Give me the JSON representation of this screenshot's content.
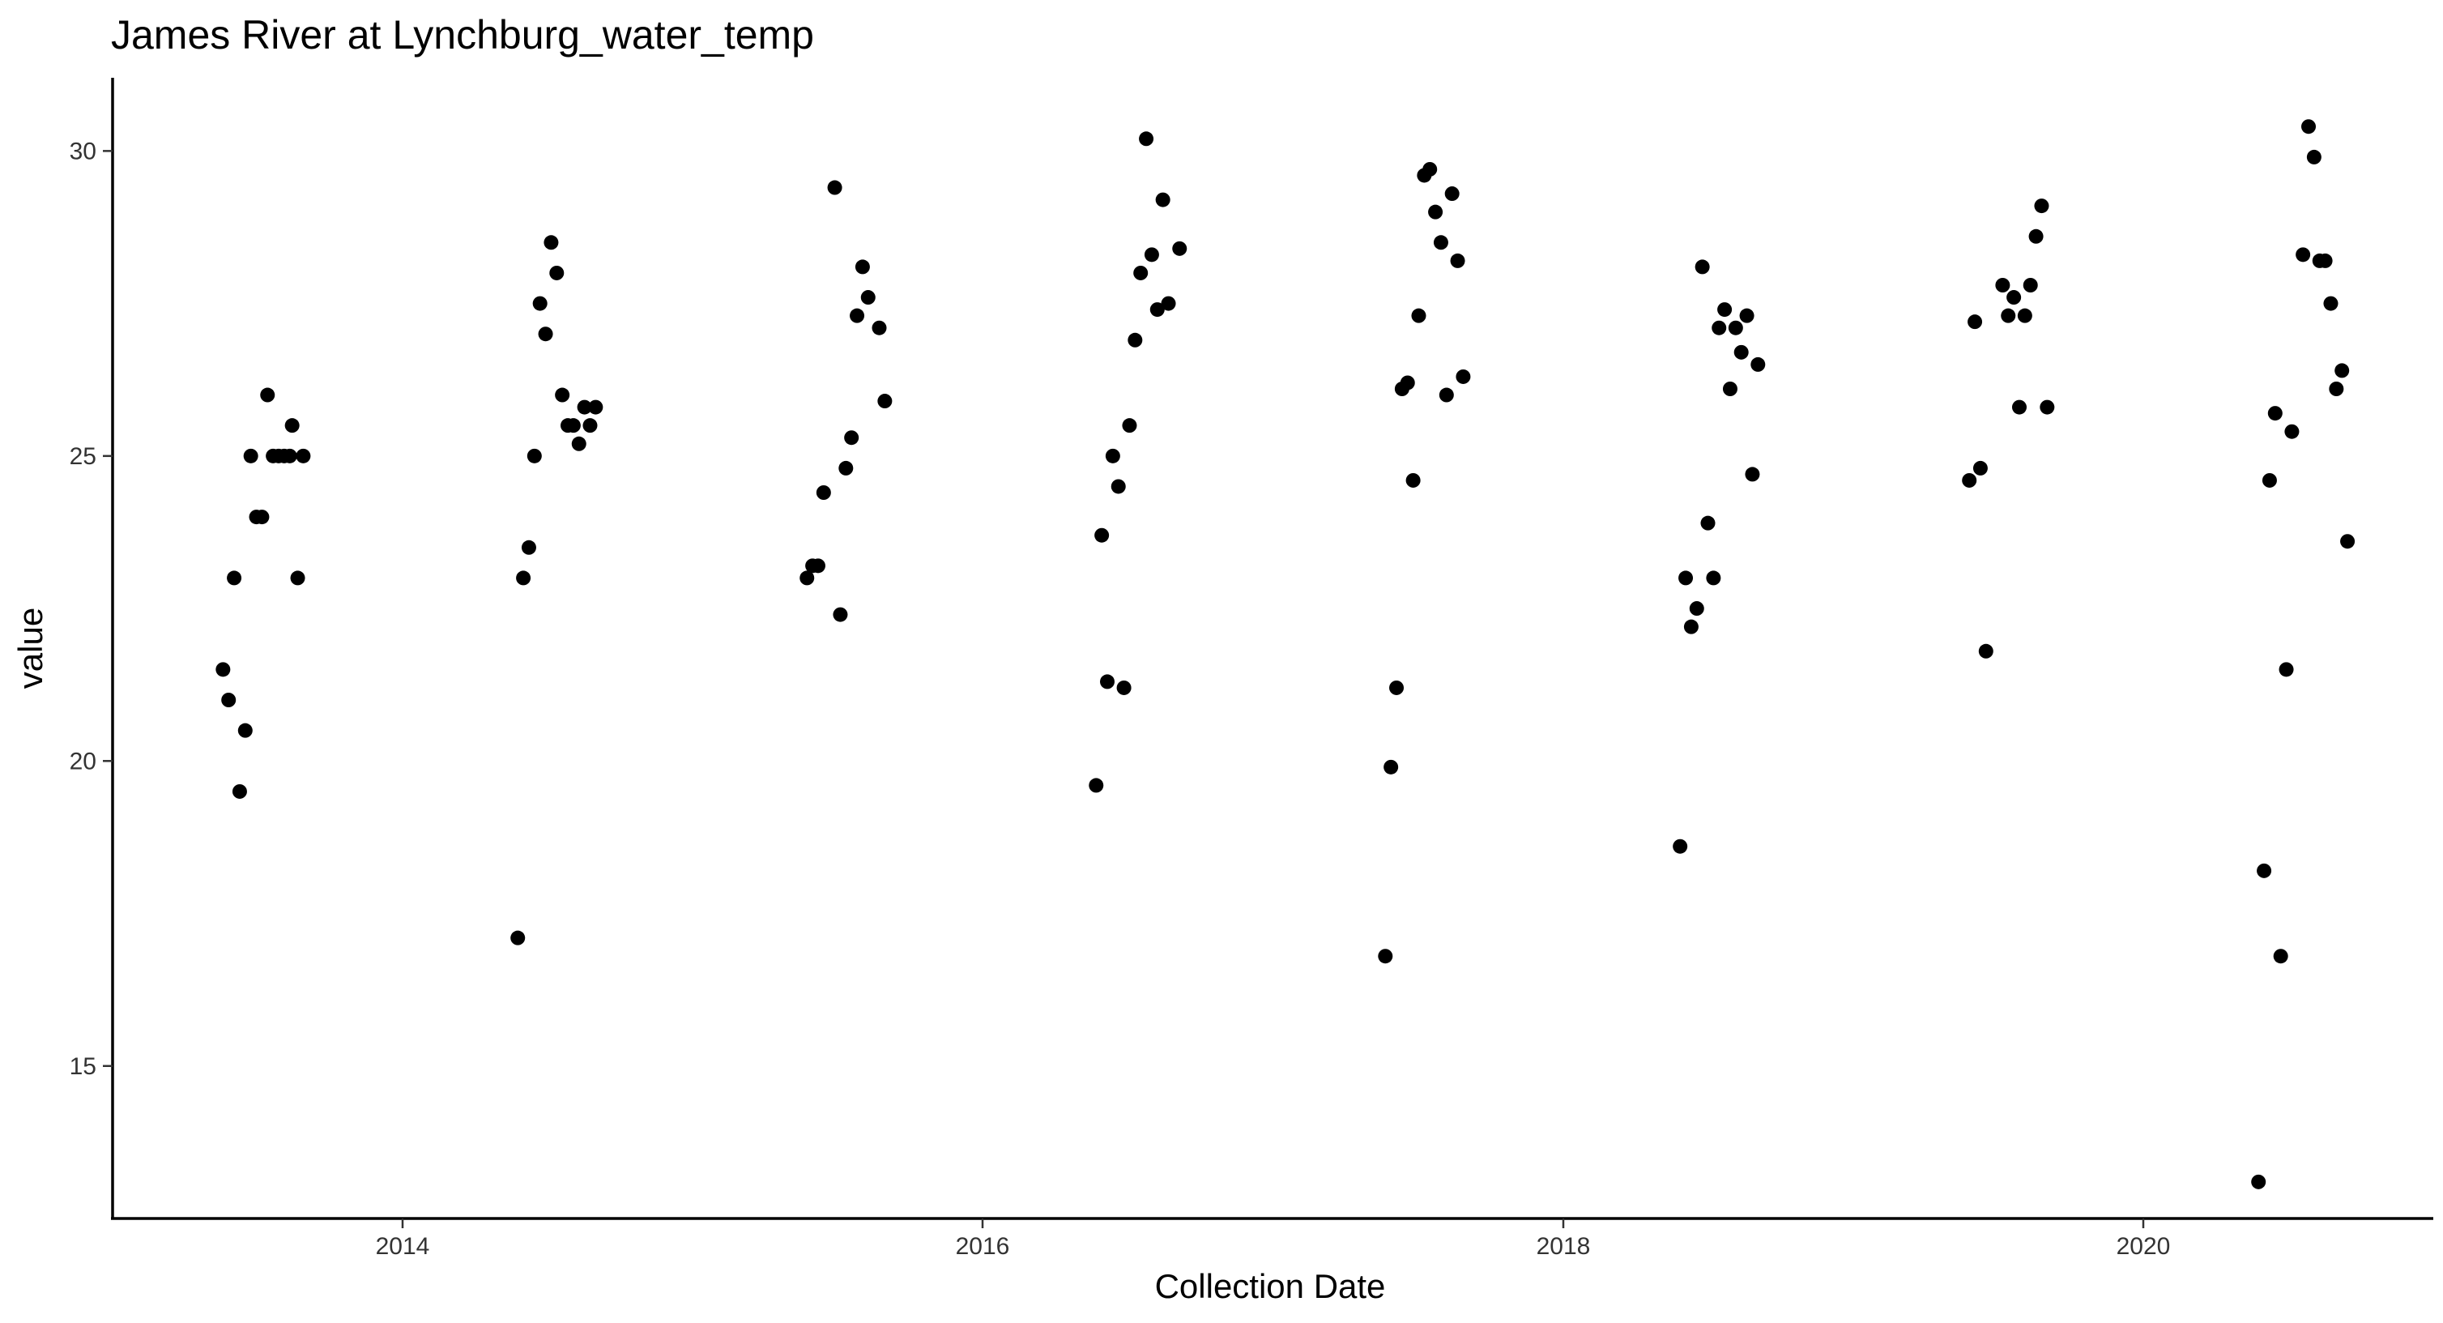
{
  "chart_data": {
    "type": "scatter",
    "title": "James River at Lynchburg_water_temp",
    "xlabel": "Collection Date",
    "ylabel": "value",
    "x_axis_type": "date",
    "xlim": [
      "2013-01-01",
      "2020-12-31"
    ],
    "ylim": [
      12.5,
      31.2
    ],
    "x_ticks": [
      {
        "value": "2014-01-01",
        "label": "2014"
      },
      {
        "value": "2016-01-01",
        "label": "2016"
      },
      {
        "value": "2018-01-01",
        "label": "2018"
      },
      {
        "value": "2020-01-01",
        "label": "2020"
      }
    ],
    "y_ticks": [
      15,
      20,
      25,
      30
    ],
    "grid": false,
    "point_color": "#000000",
    "points": [
      {
        "x": "2013-05-20",
        "y": 21.5
      },
      {
        "x": "2013-05-27",
        "y": 21.0
      },
      {
        "x": "2013-06-03",
        "y": 23.0
      },
      {
        "x": "2013-06-10",
        "y": 19.5
      },
      {
        "x": "2013-06-17",
        "y": 20.5
      },
      {
        "x": "2013-06-24",
        "y": 25.0
      },
      {
        "x": "2013-07-01",
        "y": 24.0
      },
      {
        "x": "2013-07-08",
        "y": 24.0
      },
      {
        "x": "2013-07-15",
        "y": 26.0
      },
      {
        "x": "2013-07-22",
        "y": 25.0
      },
      {
        "x": "2013-07-29",
        "y": 25.0
      },
      {
        "x": "2013-08-05",
        "y": 25.0
      },
      {
        "x": "2013-08-12",
        "y": 25.0
      },
      {
        "x": "2013-08-15",
        "y": 25.5
      },
      {
        "x": "2013-08-22",
        "y": 23.0
      },
      {
        "x": "2013-08-29",
        "y": 25.0
      },
      {
        "x": "2014-05-26",
        "y": 17.1
      },
      {
        "x": "2014-06-02",
        "y": 23.0
      },
      {
        "x": "2014-06-09",
        "y": 23.5
      },
      {
        "x": "2014-06-16",
        "y": 25.0
      },
      {
        "x": "2014-06-23",
        "y": 27.5
      },
      {
        "x": "2014-06-30",
        "y": 27.0
      },
      {
        "x": "2014-07-07",
        "y": 28.5
      },
      {
        "x": "2014-07-14",
        "y": 28.0
      },
      {
        "x": "2014-07-21",
        "y": 26.0
      },
      {
        "x": "2014-07-28",
        "y": 25.5
      },
      {
        "x": "2014-08-04",
        "y": 25.5
      },
      {
        "x": "2014-08-11",
        "y": 25.2
      },
      {
        "x": "2014-08-18",
        "y": 25.8
      },
      {
        "x": "2014-08-25",
        "y": 25.5
      },
      {
        "x": "2014-09-01",
        "y": 25.8
      },
      {
        "x": "2015-05-25",
        "y": 23.0
      },
      {
        "x": "2015-06-01",
        "y": 23.2
      },
      {
        "x": "2015-06-08",
        "y": 23.2
      },
      {
        "x": "2015-06-15",
        "y": 24.4
      },
      {
        "x": "2015-06-29",
        "y": 29.4
      },
      {
        "x": "2015-07-06",
        "y": 22.4
      },
      {
        "x": "2015-07-13",
        "y": 24.8
      },
      {
        "x": "2015-07-20",
        "y": 25.3
      },
      {
        "x": "2015-07-27",
        "y": 27.3
      },
      {
        "x": "2015-08-03",
        "y": 28.1
      },
      {
        "x": "2015-08-10",
        "y": 27.6
      },
      {
        "x": "2015-08-24",
        "y": 27.1
      },
      {
        "x": "2015-08-31",
        "y": 25.9
      },
      {
        "x": "2016-05-23",
        "y": 19.6
      },
      {
        "x": "2016-05-30",
        "y": 23.7
      },
      {
        "x": "2016-06-06",
        "y": 21.3
      },
      {
        "x": "2016-06-13",
        "y": 25.0
      },
      {
        "x": "2016-06-20",
        "y": 24.5
      },
      {
        "x": "2016-06-27",
        "y": 21.2
      },
      {
        "x": "2016-07-04",
        "y": 25.5
      },
      {
        "x": "2016-07-11",
        "y": 26.9
      },
      {
        "x": "2016-07-18",
        "y": 28.0
      },
      {
        "x": "2016-07-25",
        "y": 30.2
      },
      {
        "x": "2016-08-01",
        "y": 28.3
      },
      {
        "x": "2016-08-08",
        "y": 27.4
      },
      {
        "x": "2016-08-15",
        "y": 29.2
      },
      {
        "x": "2016-08-22",
        "y": 27.5
      },
      {
        "x": "2016-09-05",
        "y": 28.4
      },
      {
        "x": "2017-05-22",
        "y": 16.8
      },
      {
        "x": "2017-05-29",
        "y": 19.9
      },
      {
        "x": "2017-06-05",
        "y": 21.2
      },
      {
        "x": "2017-06-12",
        "y": 26.1
      },
      {
        "x": "2017-06-19",
        "y": 26.2
      },
      {
        "x": "2017-06-26",
        "y": 24.6
      },
      {
        "x": "2017-07-03",
        "y": 27.3
      },
      {
        "x": "2017-07-10",
        "y": 29.6
      },
      {
        "x": "2017-07-17",
        "y": 29.7
      },
      {
        "x": "2017-07-24",
        "y": 29.0
      },
      {
        "x": "2017-07-31",
        "y": 28.5
      },
      {
        "x": "2017-08-07",
        "y": 26.0
      },
      {
        "x": "2017-08-14",
        "y": 29.3
      },
      {
        "x": "2017-08-21",
        "y": 28.2
      },
      {
        "x": "2017-08-28",
        "y": 26.3
      },
      {
        "x": "2018-05-28",
        "y": 18.6
      },
      {
        "x": "2018-06-04",
        "y": 23.0
      },
      {
        "x": "2018-06-11",
        "y": 22.2
      },
      {
        "x": "2018-06-18",
        "y": 22.5
      },
      {
        "x": "2018-06-25",
        "y": 28.1
      },
      {
        "x": "2018-07-02",
        "y": 23.9
      },
      {
        "x": "2018-07-09",
        "y": 23.0
      },
      {
        "x": "2018-07-16",
        "y": 27.1
      },
      {
        "x": "2018-07-23",
        "y": 27.4
      },
      {
        "x": "2018-07-30",
        "y": 26.1
      },
      {
        "x": "2018-08-06",
        "y": 27.1
      },
      {
        "x": "2018-08-13",
        "y": 26.7
      },
      {
        "x": "2018-08-20",
        "y": 27.3
      },
      {
        "x": "2018-08-27",
        "y": 24.7
      },
      {
        "x": "2018-09-03",
        "y": 26.5
      },
      {
        "x": "2019-05-27",
        "y": 24.6
      },
      {
        "x": "2019-06-03",
        "y": 27.2
      },
      {
        "x": "2019-06-10",
        "y": 24.8
      },
      {
        "x": "2019-06-17",
        "y": 21.8
      },
      {
        "x": "2019-07-08",
        "y": 27.8
      },
      {
        "x": "2019-07-15",
        "y": 27.3
      },
      {
        "x": "2019-07-22",
        "y": 27.6
      },
      {
        "x": "2019-07-29",
        "y": 25.8
      },
      {
        "x": "2019-08-05",
        "y": 27.3
      },
      {
        "x": "2019-08-12",
        "y": 27.8
      },
      {
        "x": "2019-08-19",
        "y": 28.6
      },
      {
        "x": "2019-08-26",
        "y": 29.1
      },
      {
        "x": "2019-09-02",
        "y": 25.8
      },
      {
        "x": "2020-05-25",
        "y": 13.1
      },
      {
        "x": "2020-06-01",
        "y": 18.2
      },
      {
        "x": "2020-06-08",
        "y": 24.6
      },
      {
        "x": "2020-06-15",
        "y": 25.7
      },
      {
        "x": "2020-06-22",
        "y": 16.8
      },
      {
        "x": "2020-06-29",
        "y": 21.5
      },
      {
        "x": "2020-07-06",
        "y": 25.4
      },
      {
        "x": "2020-07-20",
        "y": 28.3
      },
      {
        "x": "2020-07-27",
        "y": 30.4
      },
      {
        "x": "2020-08-03",
        "y": 29.9
      },
      {
        "x": "2020-08-10",
        "y": 28.2
      },
      {
        "x": "2020-08-17",
        "y": 28.2
      },
      {
        "x": "2020-08-24",
        "y": 27.5
      },
      {
        "x": "2020-08-31",
        "y": 26.1
      },
      {
        "x": "2020-09-07",
        "y": 26.4
      },
      {
        "x": "2020-09-14",
        "y": 23.6
      }
    ]
  }
}
